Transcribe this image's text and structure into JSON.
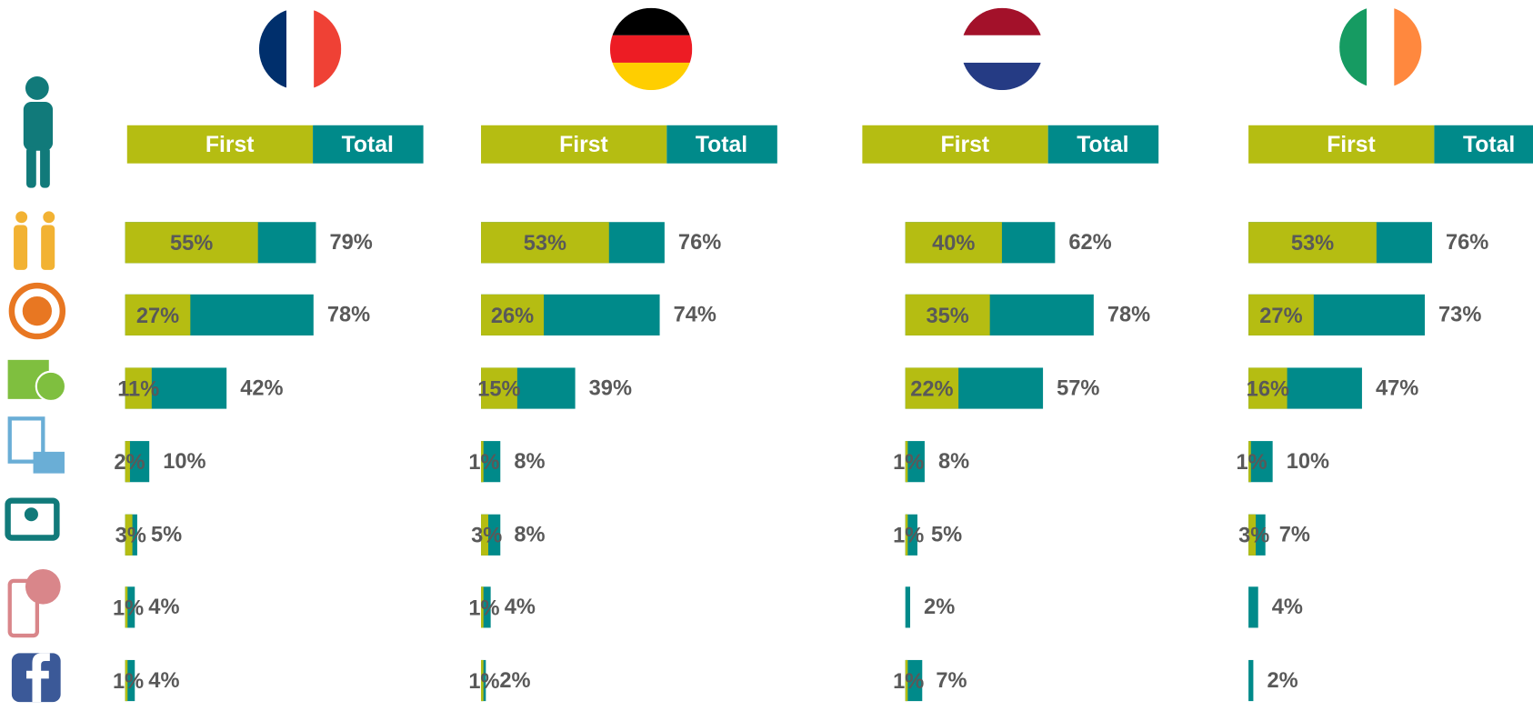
{
  "chart_data": [
    {
      "type": "bar",
      "orientation": "horizontal",
      "xlim": [
        0,
        100
      ],
      "series": [
        {
          "name": "First",
          "color": "#b5bd12",
          "values": [
            55,
            27,
            11,
            2,
            3,
            1,
            1
          ],
          "value_labels": [
            "55%",
            "27%",
            "11%",
            "2%",
            "3%",
            "1%",
            "1%"
          ]
        },
        {
          "name": "Total",
          "color": "#008a8a",
          "values": [
            79,
            78,
            42,
            10,
            5,
            4,
            4
          ],
          "value_labels": [
            "79%",
            "78%",
            "42%",
            "10%",
            "5%",
            "4%",
            "4%"
          ]
        }
      ]
    },
    {
      "type": "bar",
      "orientation": "horizontal",
      "xlim": [
        0,
        100
      ],
      "series": [
        {
          "name": "First",
          "color": "#b5bd12",
          "values": [
            53,
            26,
            15,
            1,
            3,
            1,
            1
          ],
          "value_labels": [
            "53%",
            "26%",
            "15%",
            "1%",
            "3%",
            "1%",
            "1%"
          ]
        },
        {
          "name": "Total",
          "color": "#008a8a",
          "values": [
            76,
            74,
            39,
            8,
            8,
            4,
            2
          ],
          "value_labels": [
            "76%",
            "74%",
            "39%",
            "8%",
            "8%",
            "4%",
            "2%"
          ]
        }
      ]
    },
    {
      "type": "bar",
      "orientation": "horizontal",
      "xlim": [
        0,
        100
      ],
      "series": [
        {
          "name": "First",
          "color": "#b5bd12",
          "values": [
            40,
            35,
            22,
            1,
            1,
            null,
            1
          ],
          "value_labels": [
            "40%",
            "35%",
            "22%",
            "1%",
            "1%",
            null,
            "1%"
          ]
        },
        {
          "name": "Total",
          "color": "#008a8a",
          "values": [
            62,
            78,
            57,
            8,
            5,
            2,
            7
          ],
          "value_labels": [
            "62%",
            "78%",
            "57%",
            "8%",
            "5%",
            "2%",
            "7%"
          ]
        }
      ]
    },
    {
      "type": "bar",
      "orientation": "horizontal",
      "xlim": [
        0,
        100
      ],
      "series": [
        {
          "name": "First",
          "color": "#b5bd12",
          "values": [
            53,
            27,
            16,
            1,
            3,
            null,
            null
          ],
          "value_labels": [
            "53%",
            "27%",
            "16%",
            "1%",
            "3%",
            null,
            null
          ]
        },
        {
          "name": "Total",
          "color": "#008a8a",
          "values": [
            76,
            73,
            47,
            10,
            7,
            4,
            2
          ],
          "value_labels": [
            "76%",
            "73%",
            "47%",
            "10%",
            "7%",
            "4%",
            "2%"
          ]
        }
      ]
    }
  ]
}
